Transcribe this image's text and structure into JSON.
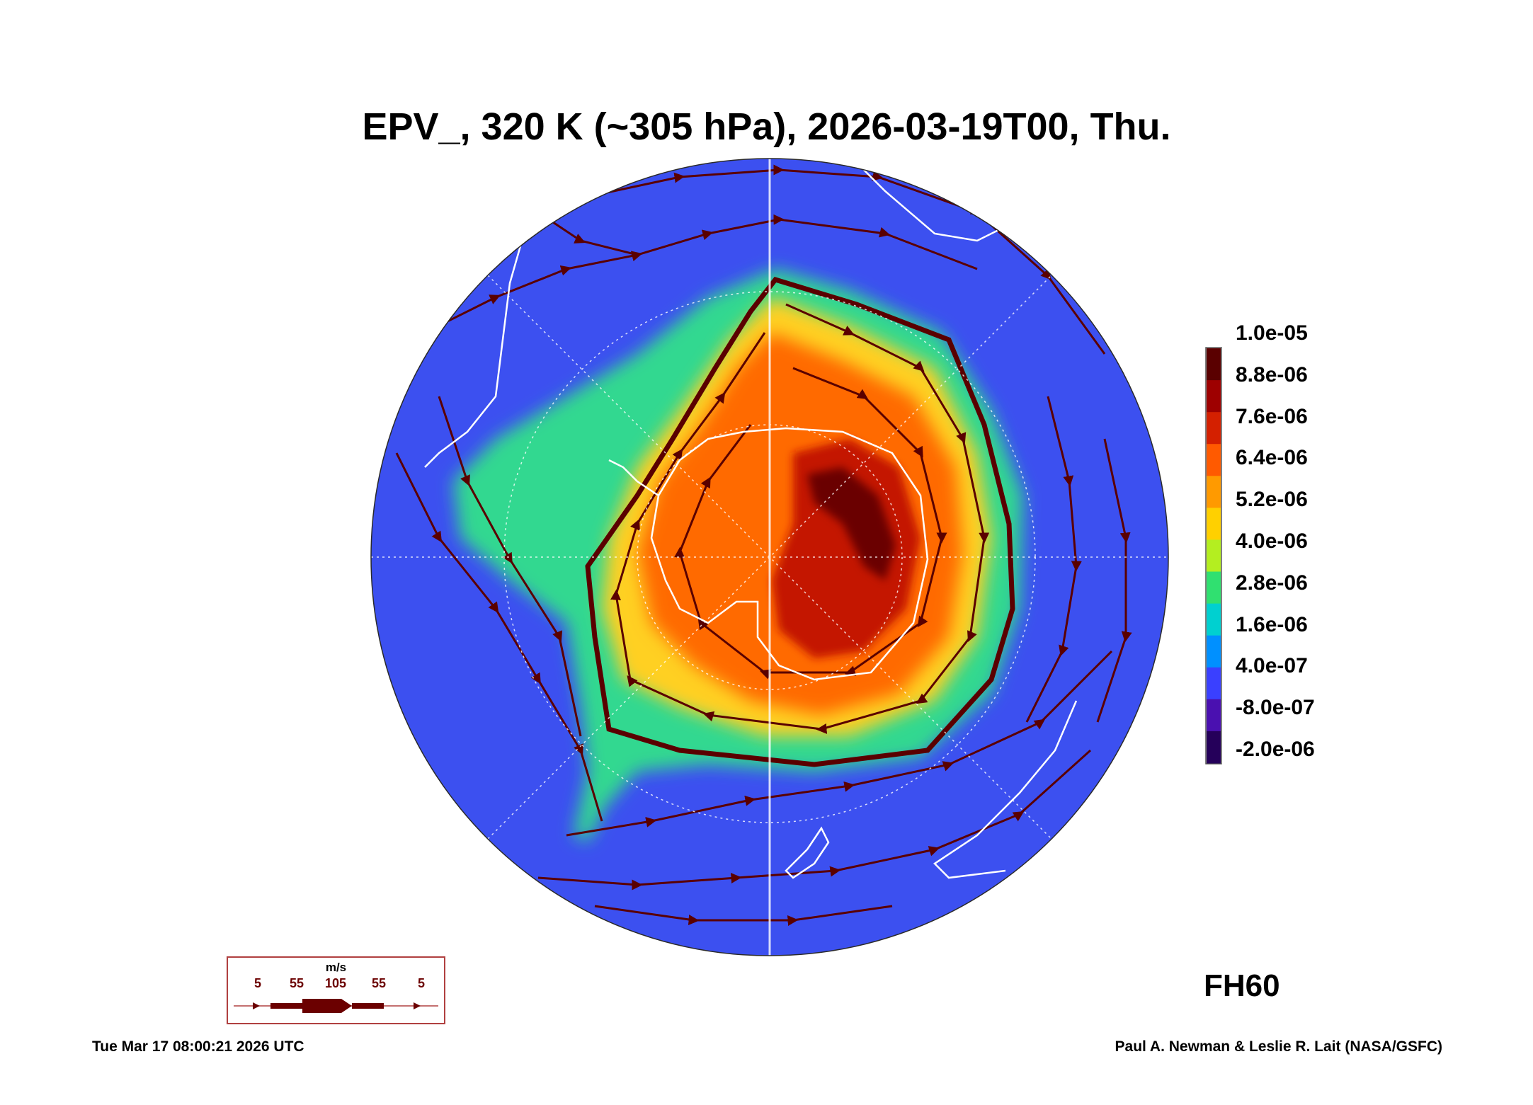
{
  "title": "EPV_, 320 K (~305 hPa), 2026-03-19T00, Thu.",
  "colorbar": {
    "labels": [
      "1.0e-05",
      "8.8e-06",
      "7.6e-06",
      "6.4e-06",
      "5.2e-06",
      "4.0e-06",
      "2.8e-06",
      "1.6e-06",
      "4.0e-07",
      "-8.0e-07",
      "-2.0e-06"
    ],
    "colors": [
      "#5a0000",
      "#9e0000",
      "#d42000",
      "#ff5a00",
      "#ff9a00",
      "#ffd000",
      "#b4ee20",
      "#30e070",
      "#00d0d0",
      "#0090ff",
      "#3a40ff",
      "#4a10b0",
      "#25005a"
    ]
  },
  "forecast_hour": "FH60",
  "wind_scale": {
    "unit": "m/s",
    "values": [
      "5",
      "55",
      "105",
      "55",
      "5"
    ]
  },
  "footer": {
    "timestamp": "Tue Mar 17 08:00:21 2026 UTC",
    "credit": "Paul A. Newman & Leslie R. Lait (NASA/GSFC)"
  },
  "map": {
    "projection": "south polar stereographic",
    "field": "EPV_",
    "ocean_color": "#3c50f0",
    "streamline_color": "#5a0000",
    "coastline_color": "#ffffff"
  }
}
